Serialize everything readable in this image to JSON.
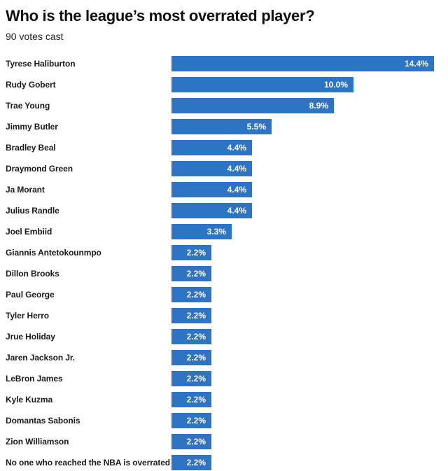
{
  "header": {
    "title": "Who is the league’s most overrated player?",
    "subtitle": "90 votes cast"
  },
  "colors": {
    "bar": "#2d74c4",
    "value_text": "#ffffff",
    "label_text": "#1a1a1a",
    "background": "#ffffff"
  },
  "chart_data": {
    "type": "bar",
    "orientation": "horizontal",
    "title": "Who is the league’s most overrated player?",
    "subtitle": "90 votes cast",
    "xlabel": "",
    "ylabel": "",
    "xlim": [
      0,
      14.4
    ],
    "grid": false,
    "legend": false,
    "value_unit": "%",
    "categories": [
      "Tyrese Haliburton",
      "Rudy Gobert",
      "Trae Young",
      "Jimmy Butler",
      "Bradley Beal",
      "Draymond Green",
      "Ja Morant",
      "Julius Randle",
      "Joel Embiid",
      "Giannis Antetokounmpo",
      "Dillon Brooks",
      "Paul George",
      "Tyler Herro",
      "Jrue Holiday",
      "Jaren Jackson Jr.",
      "LeBron James",
      "Kyle Kuzma",
      "Domantas Sabonis",
      "Zion Williamson",
      "No one who reached the NBA is overrated"
    ],
    "values": [
      14.4,
      10.0,
      8.9,
      5.5,
      4.4,
      4.4,
      4.4,
      4.4,
      3.3,
      2.2,
      2.2,
      2.2,
      2.2,
      2.2,
      2.2,
      2.2,
      2.2,
      2.2,
      2.2,
      2.2
    ],
    "value_labels": [
      "14.4%",
      "10.0%",
      "8.9%",
      "5.5%",
      "4.4%",
      "4.4%",
      "4.4%",
      "4.4%",
      "3.3%",
      "2.2%",
      "2.2%",
      "2.2%",
      "2.2%",
      "2.2%",
      "2.2%",
      "2.2%",
      "2.2%",
      "2.2%",
      "2.2%",
      "2.2%"
    ]
  }
}
